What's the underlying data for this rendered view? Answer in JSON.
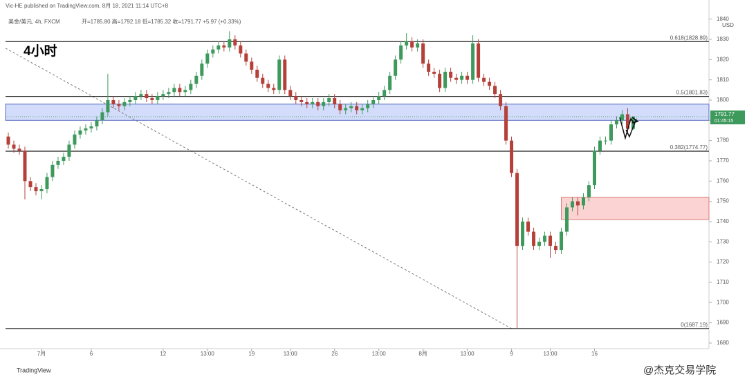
{
  "header": {
    "publisher": "Vic-HE published on TradingView.com, 8月 18, 2021 11:14 UTC+8",
    "symbol": "美金/美元, 4h, FXCM",
    "ohlc": "开=1785.80 高=1792.18 低=1785.32 收=1791.77 +5.97 (+0.33%)",
    "timeframe_label": "4小时",
    "currency": "USD",
    "countdown": "01:45:15",
    "footer_logo": "TradingView",
    "watermark": "@杰克交易学院"
  },
  "chart_data": {
    "type": "candlestick",
    "up_color": "#3d9a5c",
    "down_color": "#b5403a",
    "xlim": [
      -0.5,
      126.7
    ],
    "ylim": [
      1677.25,
      1849.43
    ],
    "yticks": [
      1680,
      1690,
      1700,
      1710,
      1720,
      1730,
      1740,
      1750,
      1760,
      1770,
      1780,
      1790,
      1800,
      1810,
      1820,
      1830,
      1840
    ],
    "xticks": [
      {
        "value": 6,
        "label": "7月"
      },
      {
        "value": 15,
        "label": "6"
      },
      {
        "value": 28,
        "label": "12"
      },
      {
        "value": 36,
        "label": "13:00"
      },
      {
        "value": 44,
        "label": "19"
      },
      {
        "value": 51,
        "label": "13:00"
      },
      {
        "value": 59,
        "label": "26"
      },
      {
        "value": 67,
        "label": "13:00"
      },
      {
        "value": 75,
        "label": "8月"
      },
      {
        "value": 83,
        "label": "13:00"
      },
      {
        "value": 91,
        "label": "9"
      },
      {
        "value": 98,
        "label": "13:00"
      },
      {
        "value": 106,
        "label": "16"
      }
    ],
    "open": [
      1782,
      1778,
      1776,
      1775,
      1760,
      1757,
      1755,
      1756,
      1762,
      1768,
      1770,
      1772,
      1778,
      1783,
      1785,
      1786,
      1787,
      1790,
      1794,
      1800,
      1798,
      1797,
      1799,
      1800,
      1802,
      1803,
      1801,
      1800,
      1802,
      1803,
      1804,
      1806,
      1804,
      1805,
      1808,
      1812,
      1818,
      1823,
      1825,
      1827,
      1826,
      1830,
      1827,
      1823,
      1819,
      1815,
      1811,
      1808,
      1806,
      1805,
      1820,
      1805,
      1802,
      1800,
      1799,
      1798,
      1799,
      1797,
      1799,
      1801,
      1798,
      1795,
      1796,
      1797,
      1795,
      1796,
      1798,
      1800,
      1802,
      1805,
      1812,
      1820,
      1827,
      1829,
      1826,
      1828,
      1818,
      1814,
      1813,
      1806,
      1814,
      1811,
      1810,
      1812,
      1810,
      1828,
      1811,
      1809,
      1807,
      1803,
      1797,
      1780,
      1764,
      1728,
      1740,
      1735,
      1728,
      1730,
      1733,
      1728,
      1726,
      1735,
      1747,
      1750,
      1748,
      1752,
      1758,
      1775,
      1780,
      1780,
      1788,
      1790,
      1793,
      1785.8
    ],
    "high": [
      1784,
      1780,
      1778,
      1777,
      1762,
      1759,
      1758,
      1764,
      1770,
      1772,
      1774,
      1780,
      1785,
      1787,
      1788,
      1789,
      1792,
      1796,
      1813,
      1802,
      1800,
      1801,
      1802,
      1804,
      1805,
      1805,
      1803,
      1804,
      1805,
      1806,
      1808,
      1808,
      1807,
      1810,
      1814,
      1820,
      1825,
      1827,
      1829,
      1829,
      1834,
      1832,
      1829,
      1825,
      1821,
      1817,
      1813,
      1810,
      1808,
      1822,
      1822,
      1807,
      1804,
      1802,
      1801,
      1801,
      1801,
      1801,
      1803,
      1803,
      1800,
      1798,
      1799,
      1799,
      1798,
      1800,
      1802,
      1804,
      1807,
      1814,
      1822,
      1829,
      1833,
      1831,
      1830,
      1830,
      1820,
      1816,
      1815,
      1816,
      1816,
      1813,
      1814,
      1814,
      1832,
      1830,
      1813,
      1811,
      1809,
      1805,
      1799,
      1782,
      1766,
      1742,
      1742,
      1737,
      1732,
      1735,
      1735,
      1730,
      1737,
      1749,
      1752,
      1752,
      1754,
      1760,
      1777,
      1782,
      1782,
      1790,
      1792,
      1795,
      1796,
      1792.18
    ],
    "low": [
      1776,
      1774,
      1773,
      1751,
      1755,
      1753,
      1751,
      1754,
      1760,
      1766,
      1768,
      1770,
      1776,
      1781,
      1783,
      1784,
      1785,
      1788,
      1792,
      1796,
      1795,
      1795,
      1797,
      1798,
      1800,
      1799,
      1798,
      1798,
      1800,
      1801,
      1802,
      1802,
      1802,
      1803,
      1806,
      1810,
      1816,
      1821,
      1823,
      1824,
      1824,
      1825,
      1821,
      1817,
      1813,
      1809,
      1806,
      1804,
      1803,
      1803,
      1803,
      1800,
      1798,
      1797,
      1796,
      1796,
      1795,
      1795,
      1797,
      1796,
      1793,
      1793,
      1794,
      1793,
      1793,
      1794,
      1796,
      1798,
      1800,
      1803,
      1810,
      1818,
      1825,
      1824,
      1824,
      1816,
      1812,
      1811,
      1804,
      1804,
      1809,
      1808,
      1808,
      1808,
      1808,
      1809,
      1807,
      1805,
      1801,
      1795,
      1778,
      1762,
      1687.19,
      1726,
      1733,
      1726,
      1726,
      1728,
      1722,
      1724,
      1724,
      1733,
      1745,
      1743,
      1746,
      1750,
      1756,
      1773,
      1778,
      1778,
      1786,
      1788,
      1784,
      1785.32
    ],
    "close": [
      1778,
      1776,
      1775,
      1760,
      1757,
      1755,
      1756,
      1762,
      1768,
      1770,
      1772,
      1778,
      1783,
      1785,
      1786,
      1787,
      1790,
      1794,
      1800,
      1798,
      1797,
      1799,
      1800,
      1802,
      1803,
      1801,
      1800,
      1802,
      1803,
      1804,
      1806,
      1804,
      1805,
      1808,
      1812,
      1818,
      1823,
      1825,
      1827,
      1826,
      1830,
      1827,
      1823,
      1819,
      1815,
      1811,
      1808,
      1806,
      1805,
      1820,
      1805,
      1802,
      1800,
      1799,
      1798,
      1799,
      1797,
      1799,
      1801,
      1798,
      1795,
      1796,
      1797,
      1795,
      1796,
      1798,
      1800,
      1802,
      1805,
      1812,
      1820,
      1827,
      1829,
      1826,
      1828,
      1818,
      1814,
      1813,
      1806,
      1814,
      1811,
      1810,
      1812,
      1810,
      1828,
      1811,
      1809,
      1807,
      1803,
      1797,
      1780,
      1764,
      1728,
      1740,
      1735,
      1728,
      1730,
      1733,
      1728,
      1726,
      1735,
      1747,
      1750,
      1748,
      1752,
      1758,
      1775,
      1780,
      1780,
      1788,
      1790,
      1793,
      1785.8,
      1791.77
    ],
    "fib_levels": [
      {
        "value": 1828.89,
        "label": "0.618(1828.89)"
      },
      {
        "value": 1801.83,
        "label": "0.5(1801.83)"
      },
      {
        "value": 1774.77,
        "label": "0.382(1774.77)"
      },
      {
        "value": 1687.19,
        "label": "0(1687.19)"
      }
    ],
    "zones": [
      {
        "from": 1790,
        "to": 1798,
        "start": -0.5,
        "fill": "#d3dcfb",
        "stroke": "#5a6cc0"
      },
      {
        "from": 1741,
        "to": 1752,
        "start": 100,
        "fill": "#fbd3d3",
        "stroke": "#d77"
      }
    ],
    "trendline": {
      "start": [
        -0.5,
        1825.6
      ],
      "end": [
        91,
        1687.19
      ]
    }
  }
}
